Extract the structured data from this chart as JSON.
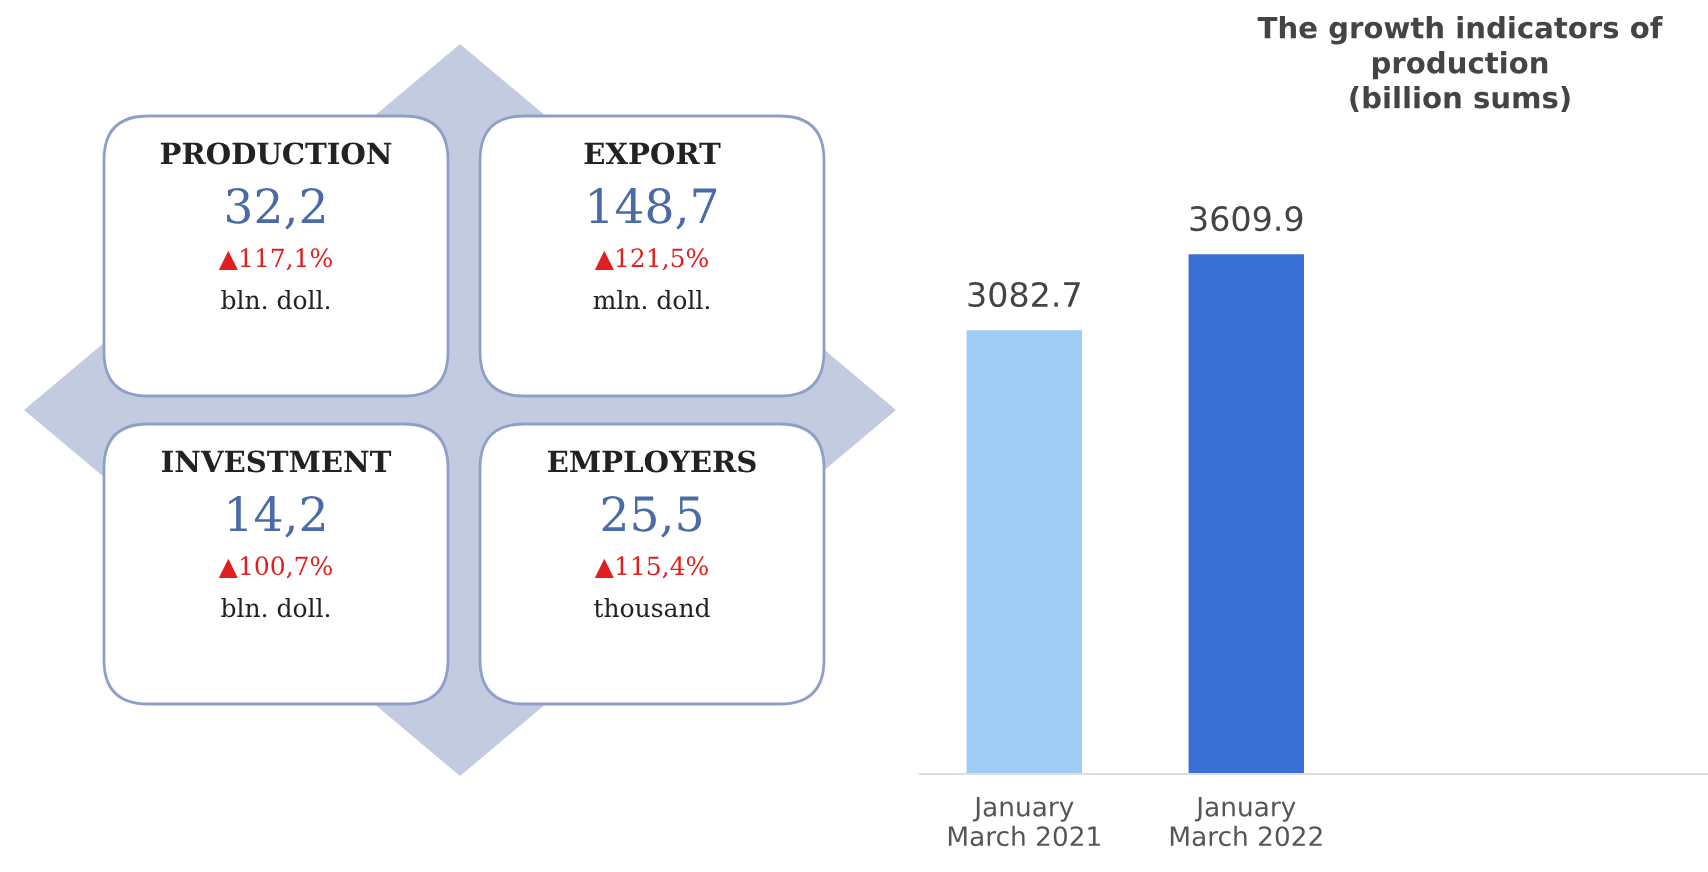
{
  "chart_data": [
    {
      "type": "other",
      "categories": [
        "PRODUCTION",
        "EXPORT",
        "INVESTMENT",
        "EMPLOYERS"
      ],
      "value_labels": [
        "32,2",
        "148,7",
        "14,2",
        "25,5"
      ],
      "annotations": [
        "▲117,1%",
        "bln. doll.",
        "▲121,5%",
        "mln. doll.",
        "▲100,7%",
        "bln. doll.",
        "▲115,4%",
        "thousand"
      ]
    },
    {
      "type": "bar",
      "title": "The growth indicators of\nproduction\n(billion sums)",
      "categories": [
        "January\nMarch 2021",
        "January\nMarch 2022"
      ],
      "values": [
        3082.7,
        3609.9
      ],
      "colors": [
        "#a0cbf5",
        "#3a6fd6"
      ],
      "data_labels": true,
      "grid": false
    }
  ]
}
